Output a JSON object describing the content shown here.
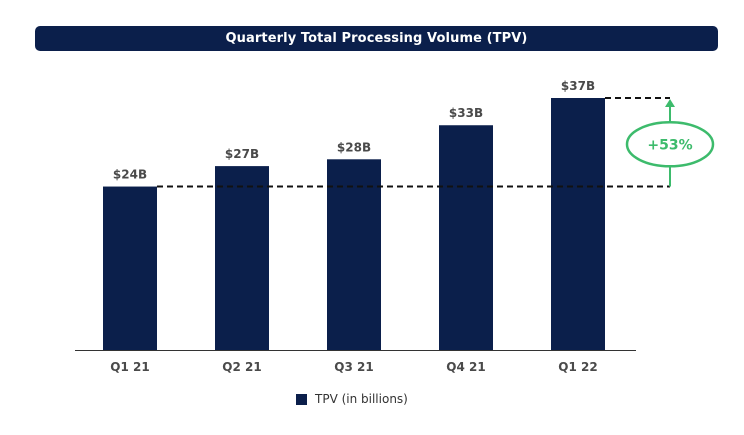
{
  "title": "Quarterly Total Processing Volume (TPV)",
  "colors": {
    "bar": "#0b1f4b",
    "callout": "#3dbb6c",
    "dash": "#111111",
    "axis": "#333333",
    "label": "#4a4a4a"
  },
  "legend": {
    "label": "TPV (in billions)"
  },
  "callout": {
    "label": "+53%",
    "from_index": 0,
    "to_index": 4
  },
  "chart_data": {
    "type": "bar",
    "categories": [
      "Q1 21",
      "Q2 21",
      "Q3 21",
      "Q4 21",
      "Q1 22"
    ],
    "series": [
      {
        "name": "TPV (in billions)",
        "values": [
          24,
          27,
          28,
          33,
          37
        ]
      }
    ],
    "data_labels": [
      "$24B",
      "$27B",
      "$28B",
      "$33B",
      "$37B"
    ],
    "ylim": [
      0,
      37
    ],
    "xlabel": "",
    "ylabel": "",
    "grid": false,
    "legend_position": "bottom"
  }
}
